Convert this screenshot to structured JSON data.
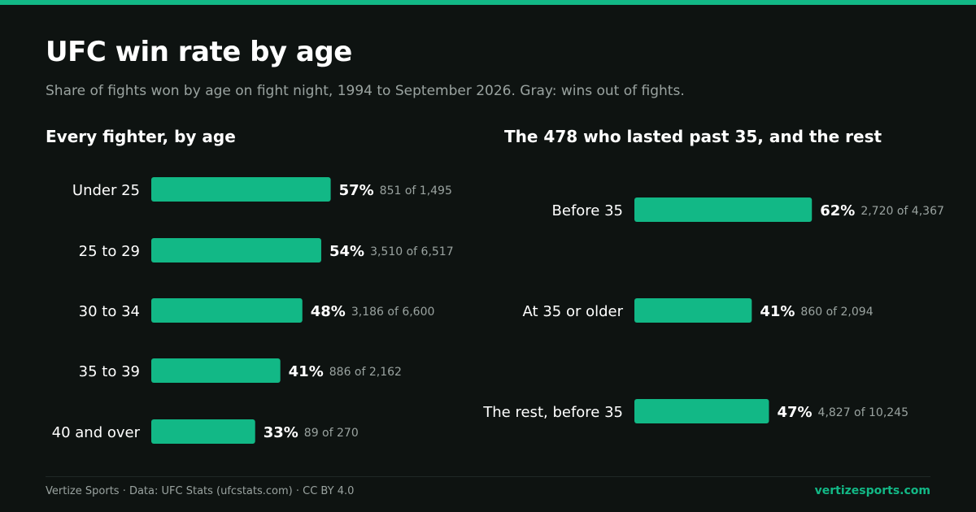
{
  "title": "UFC win rate by age",
  "subtitle": "Share of fights won by age on fight night, 1994 to September 2026. Gray: wins out of fights.",
  "colors": {
    "accent": "#12b886",
    "background": "#0e1311",
    "muted": "#9aa3a0"
  },
  "chart_data": [
    {
      "type": "bar",
      "orientation": "horizontal",
      "title": "Every fighter, by age",
      "categories": [
        "Under 25",
        "25 to 29",
        "30 to 34",
        "35 to 39",
        "40 and over"
      ],
      "values": [
        57,
        54,
        48,
        41,
        33
      ],
      "value_labels": [
        "57%",
        "54%",
        "48%",
        "41%",
        "33%"
      ],
      "detail_labels": [
        "851 of 1,495",
        "3,510 of 6,517",
        "3,186 of 6,600",
        "886 of 2,162",
        "89 of 270"
      ],
      "value_unit": "%",
      "xlim": [
        0,
        100
      ],
      "grid": false
    },
    {
      "type": "bar",
      "orientation": "horizontal",
      "title": "The 478 who lasted past 35, and the rest",
      "categories": [
        "Before 35",
        "At 35 or older",
        "The rest, before 35"
      ],
      "values": [
        62,
        41,
        47
      ],
      "value_labels": [
        "62%",
        "41%",
        "47%"
      ],
      "detail_labels": [
        "2,720 of 4,367",
        "860 of 2,094",
        "4,827 of 10,245"
      ],
      "value_unit": "%",
      "xlim": [
        0,
        100
      ],
      "grid": false
    }
  ],
  "footer": {
    "source": "Vertize Sports · Data: UFC Stats (ufcstats.com) · CC BY 4.0",
    "site": "vertizesports.com"
  }
}
